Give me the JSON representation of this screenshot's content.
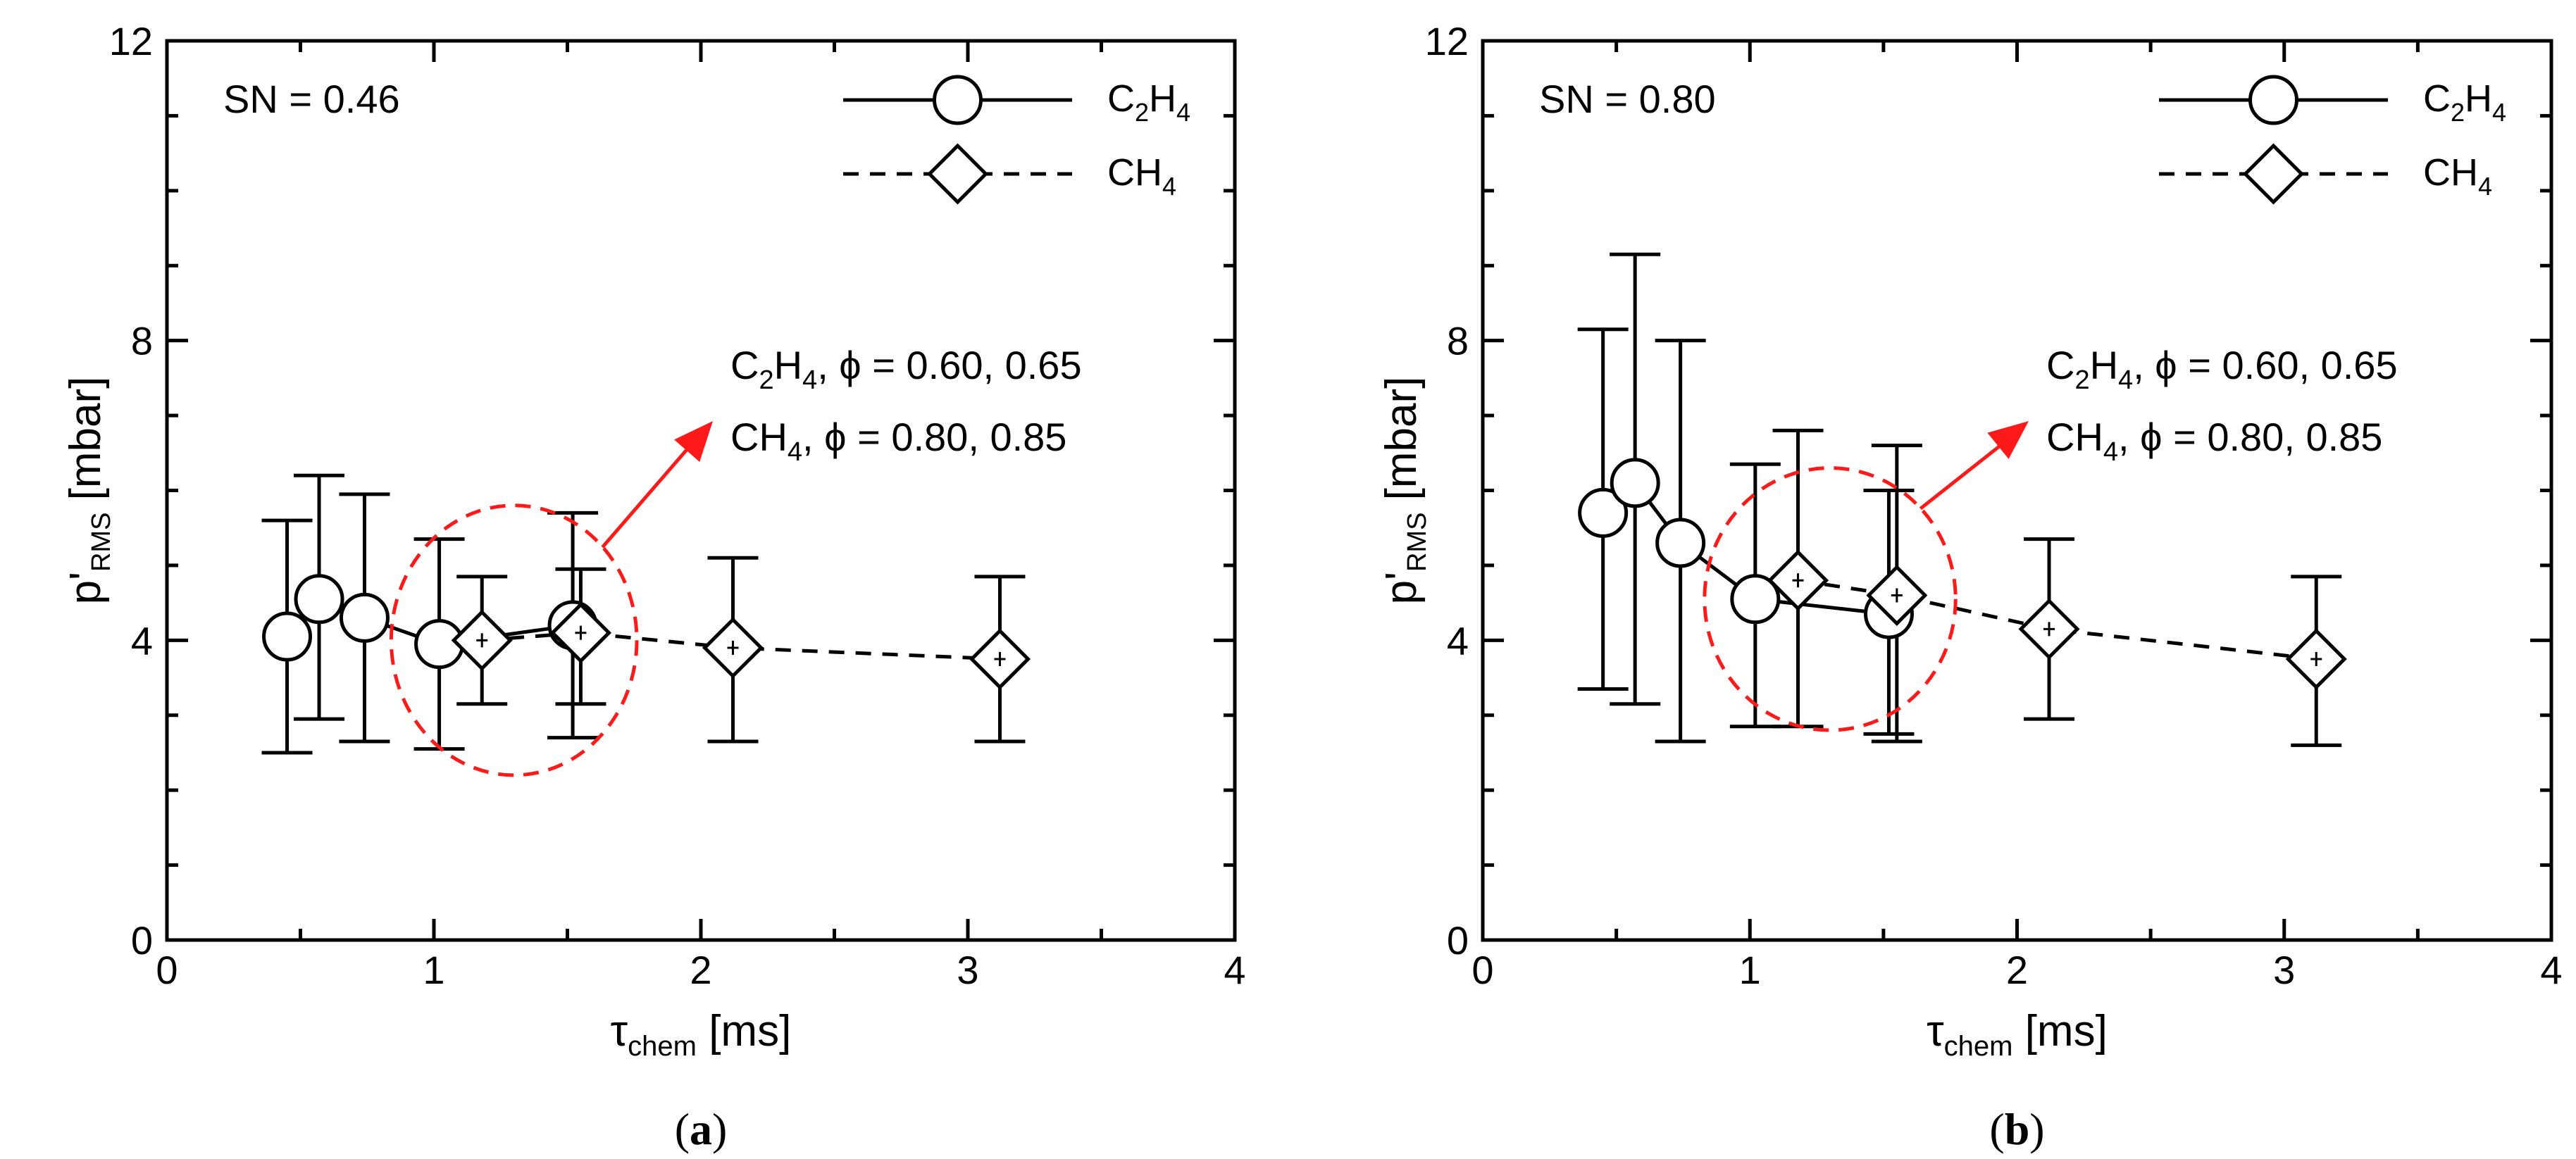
{
  "chart_data": [
    {
      "type": "line",
      "panel_label": "a",
      "annotation_sn": "SN = 0.46",
      "xlabel": {
        "main": "τ",
        "sub": "chem",
        "unit": " [ms]"
      },
      "ylabel": {
        "main": "p'",
        "sub": "RMS",
        "unit": " [mbar]"
      },
      "xlim": [
        0,
        4
      ],
      "ylim": [
        0,
        12
      ],
      "xticks": [
        "0",
        "1",
        "2",
        "3",
        "4"
      ],
      "yticks": [
        "0",
        "4",
        "8",
        "12"
      ],
      "legend": [
        {
          "pre": "C",
          "sub1": "2",
          "mid": "H",
          "sub2": "4",
          "style": "solid",
          "marker": "circle"
        },
        {
          "pre": "CH",
          "sub1": "4",
          "mid": "",
          "sub2": "",
          "style": "dashed",
          "marker": "diamond"
        }
      ],
      "callout": {
        "line1": {
          "pre": "C",
          "sub1": "2",
          "mid": "H",
          "sub2": "4",
          "rest": ", ϕ = 0.60, 0.65"
        },
        "line2": {
          "pre": "CH",
          "sub1": "4",
          "mid": "",
          "sub2": "",
          "rest": ", ϕ = 0.80, 0.85"
        },
        "circle_x": 1.3,
        "circle_y": 4.0,
        "circle_rx": 0.46,
        "circle_ry": 1.8,
        "highlight_color": "#ff1a1a"
      },
      "series": [
        {
          "name": "C2H4",
          "style": "solid",
          "marker": "circle",
          "x": [
            0.45,
            0.57,
            0.74,
            1.02,
            1.52
          ],
          "y": [
            4.05,
            4.55,
            4.3,
            3.95,
            4.2
          ],
          "err_low": [
            2.5,
            2.95,
            2.65,
            2.55,
            2.7
          ],
          "err_high": [
            5.6,
            6.2,
            5.95,
            5.35,
            5.7
          ]
        },
        {
          "name": "CH4",
          "style": "dashed",
          "marker": "diamond",
          "x": [
            1.18,
            1.55,
            2.12,
            3.12
          ],
          "y": [
            4.0,
            4.1,
            3.9,
            3.75
          ],
          "err_low": [
            3.15,
            3.15,
            2.65,
            2.65
          ],
          "err_high": [
            4.85,
            4.95,
            5.1,
            4.85
          ]
        }
      ]
    },
    {
      "type": "line",
      "panel_label": "b",
      "annotation_sn": "SN = 0.80",
      "xlabel": {
        "main": "τ",
        "sub": "chem",
        "unit": " [ms]"
      },
      "ylabel": {
        "main": "p'",
        "sub": "RMS",
        "unit": " [mbar]"
      },
      "xlim": [
        0,
        4
      ],
      "ylim": [
        0,
        12
      ],
      "xticks": [
        "0",
        "1",
        "2",
        "3",
        "4"
      ],
      "yticks": [
        "0",
        "4",
        "8",
        "12"
      ],
      "legend": [
        {
          "pre": "C",
          "sub1": "2",
          "mid": "H",
          "sub2": "4",
          "style": "solid",
          "marker": "circle"
        },
        {
          "pre": "CH",
          "sub1": "4",
          "mid": "",
          "sub2": "",
          "style": "dashed",
          "marker": "diamond"
        }
      ],
      "callout": {
        "line1": {
          "pre": "C",
          "sub1": "2",
          "mid": "H",
          "sub2": "4",
          "rest": ", ϕ = 0.60, 0.65"
        },
        "line2": {
          "pre": "CH",
          "sub1": "4",
          "mid": "",
          "sub2": "",
          "rest": ", ϕ = 0.80, 0.85"
        },
        "circle_x": 1.3,
        "circle_y": 4.55,
        "circle_rx": 0.47,
        "circle_ry": 1.75,
        "highlight_color": "#ff1a1a"
      },
      "series": [
        {
          "name": "C2H4",
          "style": "solid",
          "marker": "circle",
          "x": [
            0.45,
            0.57,
            0.74,
            1.02,
            1.52
          ],
          "y": [
            5.7,
            6.1,
            5.3,
            4.55,
            4.35
          ],
          "err_low": [
            3.35,
            3.15,
            2.65,
            2.85,
            2.75
          ],
          "err_high": [
            8.15,
            9.15,
            8.0,
            6.35,
            6.0
          ]
        },
        {
          "name": "CH4",
          "style": "dashed",
          "marker": "diamond",
          "x": [
            1.18,
            1.55,
            2.12,
            3.12
          ],
          "y": [
            4.8,
            4.6,
            4.15,
            3.75
          ],
          "err_low": [
            2.85,
            2.65,
            2.95,
            2.6
          ],
          "err_high": [
            6.8,
            6.6,
            5.35,
            4.85
          ]
        }
      ]
    }
  ]
}
